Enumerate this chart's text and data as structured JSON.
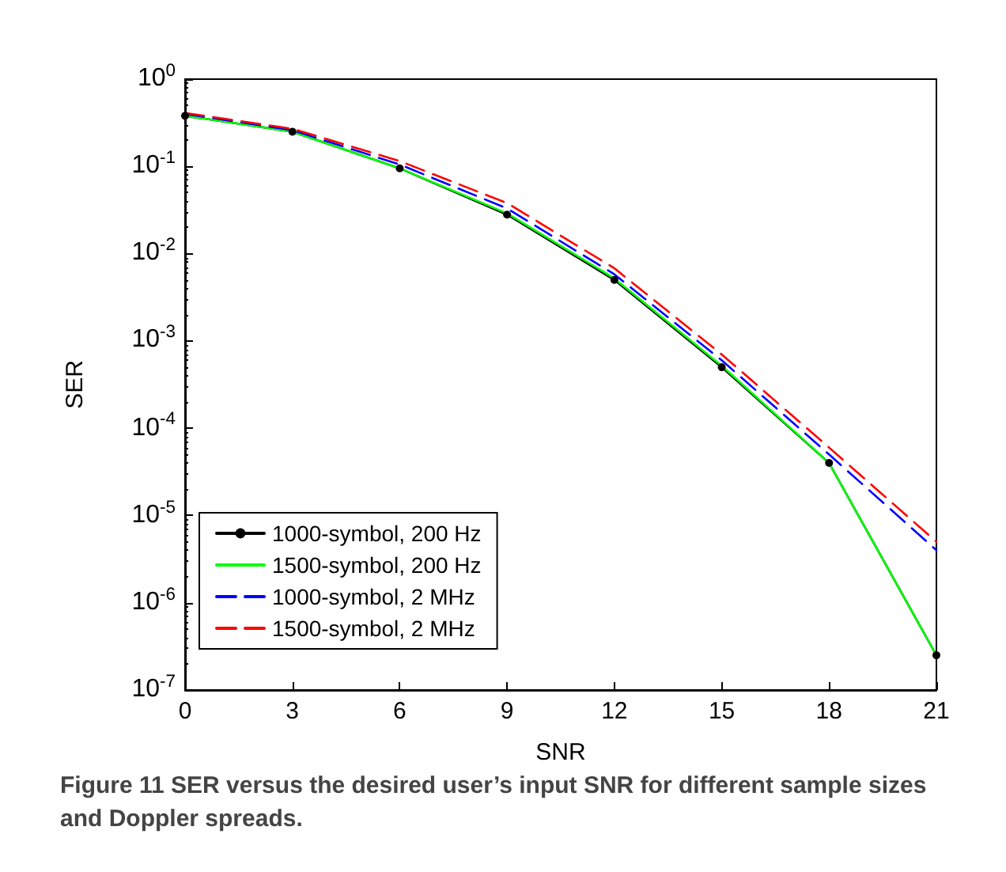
{
  "chart_data": {
    "type": "line",
    "xlabel": "SNR",
    "ylabel": "SER",
    "x": [
      0,
      3,
      6,
      9,
      12,
      15,
      18,
      21
    ],
    "series": [
      {
        "name": "1000-symbol, 200 Hz",
        "color": "#000000",
        "marker": "circle",
        "line_style": "solid",
        "values": [
          0.38,
          0.25,
          0.095,
          0.028,
          0.005,
          0.0005,
          4e-05,
          2.5e-07
        ]
      },
      {
        "name": "1500-symbol, 200 Hz",
        "color": "#00ff00",
        "marker": "none",
        "line_style": "solid",
        "values": [
          0.38,
          0.25,
          0.095,
          0.029,
          0.0052,
          0.00052,
          4e-05,
          2.5e-07
        ]
      },
      {
        "name": "1000-symbol, 2 MHz",
        "color": "#0000ff",
        "marker": "none",
        "line_style": "dashed",
        "values": [
          0.4,
          0.26,
          0.105,
          0.033,
          0.0058,
          0.0006,
          5e-05,
          4e-06
        ]
      },
      {
        "name": "1500-symbol, 2 MHz",
        "color": "#ff0000",
        "marker": "none",
        "line_style": "dashed",
        "values": [
          0.41,
          0.27,
          0.115,
          0.038,
          0.0068,
          0.0007,
          6e-05,
          5e-06
        ]
      }
    ],
    "log": "y",
    "xlim": [
      0,
      21
    ],
    "xticks": [
      0,
      3,
      6,
      9,
      12,
      15,
      18,
      21
    ],
    "ylim": [
      1e-07,
      1
    ],
    "yticks": [
      {
        "value": 1e-07,
        "label": "10$^{-7}$"
      },
      {
        "value": 1e-06,
        "label": "10$^{-6}$"
      },
      {
        "value": 1e-05,
        "label": "10$^{-5}$"
      },
      {
        "value": 0.0001,
        "label": "10$^{-4}$"
      },
      {
        "value": 0.001,
        "label": "10$^{-3}$"
      },
      {
        "value": 0.01,
        "label": "10$^{-2}$"
      },
      {
        "value": 0.1,
        "label": "10$^{-1}$"
      },
      {
        "value": 1,
        "label": "10$^{0}$"
      }
    ],
    "grid": false,
    "legend": "bottom left",
    "annotations": [
      "Figure 11 SER versus the desired user’s input SNR for different sample sizes and Doppler spreads."
    ]
  }
}
